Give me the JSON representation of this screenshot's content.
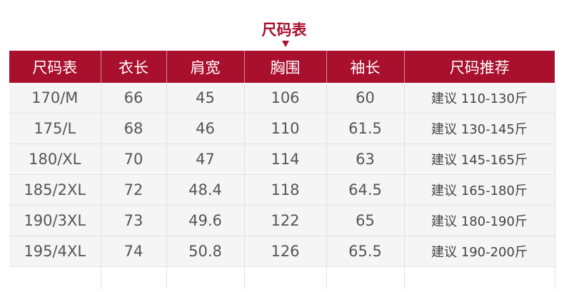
{
  "title": "尺码表",
  "colors": {
    "header": "#a8102e"
  },
  "headers": [
    "尺码表",
    "衣长",
    "肩宽",
    "胸围",
    "袖长",
    "尺码推荐"
  ],
  "rows": [
    [
      "170/M",
      "66",
      "45",
      "106",
      "60",
      "建议 110-130斤"
    ],
    [
      "175/L",
      "68",
      "46",
      "110",
      "61.5",
      "建议 130-145斤"
    ],
    [
      "180/XL",
      "70",
      "47",
      "114",
      "63",
      "建议 145-165斤"
    ],
    [
      "185/2XL",
      "72",
      "48.4",
      "118",
      "64.5",
      "建议 165-180斤"
    ],
    [
      "190/3XL",
      "73",
      "49.6",
      "122",
      "65",
      "建议 180-190斤"
    ],
    [
      "195/4XL",
      "74",
      "50.8",
      "126",
      "65.5",
      "建议 190-200斤"
    ]
  ]
}
